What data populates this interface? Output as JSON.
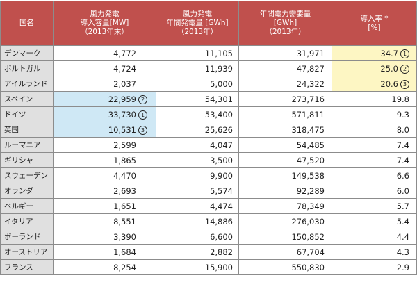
{
  "headers": [
    {
      "lines": [
        "国名"
      ]
    },
    {
      "lines": [
        "風力発電",
        "導入容量[MW]",
        "（2013年末）"
      ]
    },
    {
      "lines": [
        "風力発電",
        "年間発電量 [GWh]",
        "（2013年）"
      ]
    },
    {
      "lines": [
        "年間電力需要量",
        "[GWh]",
        "（2013年）"
      ]
    },
    {
      "lines": [
        "導入率 *",
        "[%]"
      ]
    }
  ],
  "rows": [
    {
      "country": "デンマーク",
      "capacity": "4,772",
      "generation": "11,105",
      "demand": "31,971",
      "rate": "34.7",
      "rate_rank": "1",
      "capacity_rank": ""
    },
    {
      "country": "ポルトガル",
      "capacity": "4,724",
      "generation": "11,939",
      "demand": "47,827",
      "rate": "25.0",
      "rate_rank": "2",
      "capacity_rank": ""
    },
    {
      "country": "アイルランド",
      "capacity": "2,037",
      "generation": "5,000",
      "demand": "24,322",
      "rate": "20.6",
      "rate_rank": "3",
      "capacity_rank": ""
    },
    {
      "country": "スペイン",
      "capacity": "22,959",
      "generation": "54,301",
      "demand": "273,716",
      "rate": "19.8",
      "rate_rank": "",
      "capacity_rank": "2"
    },
    {
      "country": "ドイツ",
      "capacity": "33,730",
      "generation": "53,400",
      "demand": "571,811",
      "rate": "9.3",
      "rate_rank": "",
      "capacity_rank": "1"
    },
    {
      "country": "英国",
      "capacity": "10,531",
      "generation": "25,626",
      "demand": "318,475",
      "rate": "8.0",
      "rate_rank": "",
      "capacity_rank": "3"
    },
    {
      "country": "ルーマニア",
      "capacity": "2,599",
      "generation": "4,047",
      "demand": "54,485",
      "rate": "7.4",
      "rate_rank": "",
      "capacity_rank": ""
    },
    {
      "country": "ギリシャ",
      "capacity": "1,865",
      "generation": "3,500",
      "demand": "47,520",
      "rate": "7.4",
      "rate_rank": "",
      "capacity_rank": ""
    },
    {
      "country": "スウェーデン",
      "capacity": "4,470",
      "generation": "9,900",
      "demand": "149,538",
      "rate": "6.6",
      "rate_rank": "",
      "capacity_rank": ""
    },
    {
      "country": "オランダ",
      "capacity": "2,693",
      "generation": "5,574",
      "demand": "92,289",
      "rate": "6.0",
      "rate_rank": "",
      "capacity_rank": ""
    },
    {
      "country": "ベルギー",
      "capacity": "1,651",
      "generation": "4,474",
      "demand": "78,349",
      "rate": "5.7",
      "rate_rank": "",
      "capacity_rank": ""
    },
    {
      "country": "イタリア",
      "capacity": "8,551",
      "generation": "14,886",
      "demand": "276,030",
      "rate": "5.4",
      "rate_rank": "",
      "capacity_rank": ""
    },
    {
      "country": "ポーランド",
      "capacity": "3,390",
      "generation": "6,600",
      "demand": "150,852",
      "rate": "4.4",
      "rate_rank": "",
      "capacity_rank": ""
    },
    {
      "country": "オーストリア",
      "capacity": "1,684",
      "generation": "2,882",
      "demand": "67,704",
      "rate": "4.3",
      "rate_rank": "",
      "capacity_rank": ""
    },
    {
      "country": "フランス",
      "capacity": "8,254",
      "generation": "15,900",
      "demand": "550,830",
      "rate": "2.9",
      "rate_rank": "",
      "capacity_rank": ""
    }
  ],
  "colors": {
    "header_bg": "#c0504d",
    "name_bg": "#e0e0e0",
    "rate_highlight": "#fdf6c3",
    "capacity_highlight": "#cfe8f5"
  }
}
